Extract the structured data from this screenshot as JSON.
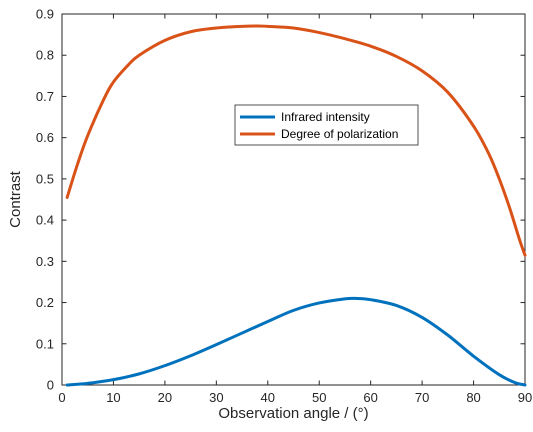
{
  "chart_data": {
    "type": "line",
    "xlabel": "Observation angle / (°)",
    "ylabel": "Contrast",
    "xlim": [
      0,
      90
    ],
    "ylim": [
      0,
      0.9
    ],
    "xticks": [
      0,
      10,
      20,
      30,
      40,
      50,
      60,
      70,
      80,
      90
    ],
    "yticks": [
      0,
      0.1,
      0.2,
      0.3,
      0.4,
      0.5,
      0.6,
      0.7,
      0.8,
      0.9
    ],
    "grid": false,
    "legend_position": "center-right",
    "series": [
      {
        "name": "Infrared intensity",
        "color": "#0072BD",
        "x": [
          1,
          5,
          10,
          15,
          20,
          25,
          30,
          35,
          40,
          45,
          50,
          55,
          57,
          60,
          65,
          70,
          75,
          80,
          85,
          88,
          90
        ],
        "y": [
          0.0,
          0.004,
          0.013,
          0.027,
          0.047,
          0.071,
          0.098,
          0.126,
          0.154,
          0.181,
          0.199,
          0.209,
          0.21,
          0.207,
          0.193,
          0.164,
          0.121,
          0.07,
          0.025,
          0.006,
          0.0
        ]
      },
      {
        "name": "Degree of polarization",
        "color": "#D95319",
        "x": [
          1,
          3,
          5,
          8,
          10,
          13,
          15,
          20,
          25,
          30,
          35,
          38,
          40,
          45,
          50,
          55,
          60,
          65,
          70,
          75,
          80,
          83,
          85,
          87,
          89,
          90
        ],
        "y": [
          0.455,
          0.535,
          0.605,
          0.69,
          0.735,
          0.778,
          0.8,
          0.836,
          0.857,
          0.866,
          0.87,
          0.871,
          0.87,
          0.866,
          0.855,
          0.84,
          0.822,
          0.797,
          0.762,
          0.71,
          0.628,
          0.56,
          0.5,
          0.43,
          0.35,
          0.315
        ]
      }
    ]
  }
}
